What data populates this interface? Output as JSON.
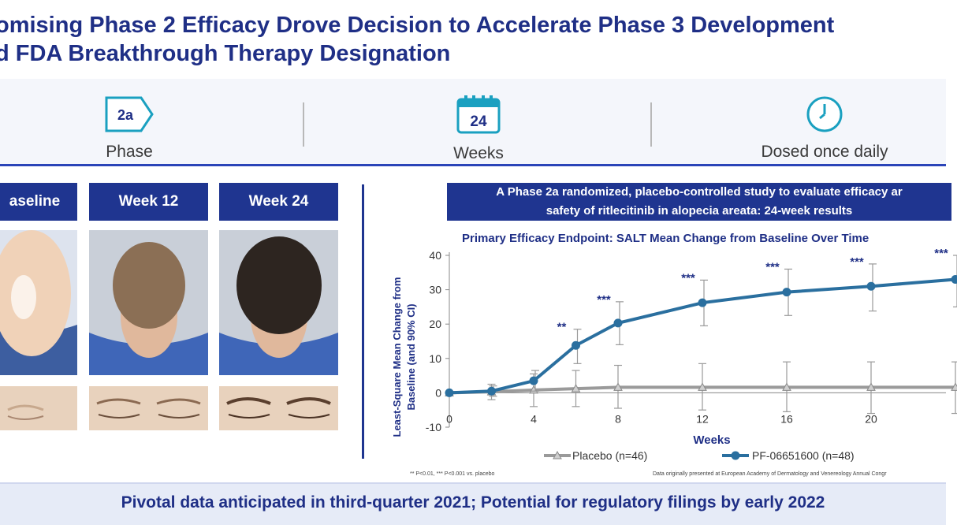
{
  "header": {
    "title_line1": "omising Phase 2 Efficacy Drove Decision to Accelerate Phase 3 Development",
    "title_line2": "d FDA Breakthrough Therapy Designation"
  },
  "features": [
    {
      "icon": "2a",
      "caption": "Phase"
    },
    {
      "icon": "24",
      "caption": "Weeks"
    },
    {
      "icon": "clock",
      "caption": "Dosed once daily"
    }
  ],
  "photos": {
    "columns": [
      "aseline",
      "Week 12",
      "Week 24"
    ]
  },
  "study": {
    "banner_line1": "A Phase 2a randomized, placebo-controlled study to evaluate efficacy ar",
    "banner_line2": "safety of ritlecitinib in alopecia areata: 24-week results"
  },
  "footnotes": {
    "left": "** P<0.01, *** P<0.001 vs. placebo",
    "right": "Data originally presented at European Academy of Dermatology and Venereology Annual Congr"
  },
  "bottom_banner": "Pivotal data anticipated in third-quarter 2021; Potential for regulatory filings by early 2022",
  "chart_data": {
    "type": "line",
    "title": "Primary Efficacy Endpoint: SALT Mean Change from Baseline Over Time",
    "xlabel": "Weeks",
    "ylabel": "Least-Square Mean Change from Baseline (and 90% CI)",
    "ylim": [
      -10,
      40
    ],
    "xlim": [
      0,
      24
    ],
    "x_ticks": [
      0,
      4,
      8,
      12,
      16,
      20
    ],
    "y_ticks": [
      -10,
      0,
      10,
      20,
      30,
      40
    ],
    "legend_position": "bottom",
    "colors": {
      "placebo": "#9a9a9a",
      "active": "#2a6f9f"
    },
    "series": [
      {
        "name": "Placebo (n=46)",
        "marker": "triangle",
        "x": [
          0,
          2,
          4,
          6,
          8,
          12,
          16,
          20,
          24
        ],
        "y": [
          0,
          0.3,
          0.8,
          1.2,
          1.6,
          1.6,
          1.6,
          1.6,
          1.6
        ],
        "ci_low": [
          0,
          -2,
          -4,
          -4,
          -4.5,
          -5,
          -5.5,
          -6,
          -6
        ],
        "ci_high": [
          0,
          2.5,
          5.5,
          6.5,
          8,
          8.5,
          9,
          9,
          9
        ]
      },
      {
        "name": "PF-06651600 (n=48)",
        "marker": "circle",
        "x": [
          0,
          2,
          4,
          6,
          8,
          12,
          16,
          20,
          24
        ],
        "y": [
          0,
          0.5,
          3.5,
          13.8,
          20.3,
          26.2,
          29.3,
          31,
          33
        ],
        "ci_low": [
          0,
          -1,
          0.5,
          8.5,
          14,
          19.5,
          22.5,
          23.8,
          25
        ],
        "ci_high": [
          0,
          2,
          6.5,
          18.5,
          26.5,
          32.8,
          36,
          37.5,
          40
        ]
      }
    ],
    "annotations": [
      {
        "x": 6,
        "label": "**"
      },
      {
        "x": 8,
        "label": "***"
      },
      {
        "x": 12,
        "label": "***"
      },
      {
        "x": 16,
        "label": "***"
      },
      {
        "x": 20,
        "label": "***"
      },
      {
        "x": 24,
        "label": "***"
      }
    ]
  }
}
